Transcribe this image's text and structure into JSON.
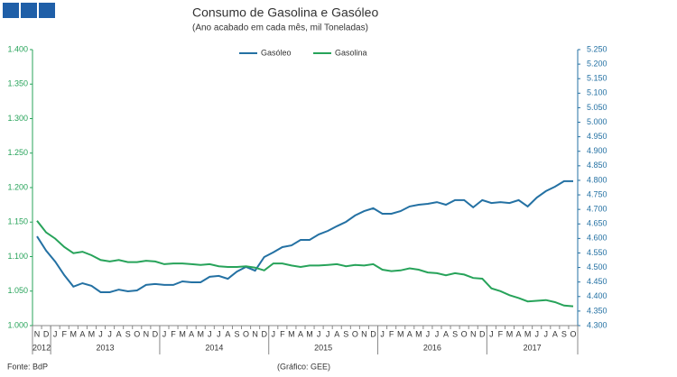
{
  "chart_data": {
    "type": "line",
    "title": "Consumo de Gasolina e Gasóleo",
    "subtitle": "(Ano acabado em cada mês, mil Toneladas)",
    "categories": [
      "N",
      "D",
      "J",
      "F",
      "M",
      "A",
      "M",
      "J",
      "J",
      "A",
      "S",
      "O",
      "N",
      "D",
      "J",
      "F",
      "M",
      "A",
      "M",
      "J",
      "J",
      "A",
      "S",
      "O",
      "N",
      "D",
      "J",
      "F",
      "M",
      "A",
      "M",
      "J",
      "J",
      "A",
      "S",
      "O",
      "N",
      "D",
      "J",
      "F",
      "M",
      "A",
      "M",
      "J",
      "J",
      "A",
      "S",
      "O",
      "N",
      "D",
      "J",
      "F",
      "M",
      "A",
      "M",
      "J",
      "J",
      "A",
      "S",
      "O"
    ],
    "years": [
      "2012",
      "2013",
      "2014",
      "2015",
      "2016",
      "2017"
    ],
    "series": [
      {
        "name": "Gasóleo",
        "color": "#2471a3",
        "axis": "y2",
        "values": [
          4607,
          4558,
          4520,
          4474,
          4434,
          4446,
          4437,
          4415,
          4415,
          4424,
          4418,
          4421,
          4440,
          4443,
          4440,
          4440,
          4452,
          4449,
          4449,
          4468,
          4471,
          4461,
          4486,
          4502,
          4489,
          4536,
          4552,
          4570,
          4576,
          4595,
          4595,
          4614,
          4626,
          4642,
          4657,
          4679,
          4694,
          4704,
          4685,
          4685,
          4694,
          4710,
          4716,
          4719,
          4725,
          4716,
          4732,
          4732,
          4707,
          4732,
          4722,
          4725,
          4722,
          4732,
          4710,
          4741,
          4763,
          4778,
          4797,
          4797
        ]
      },
      {
        "name": "Gasolina",
        "color": "#27a35a",
        "values": [
          1152,
          1135,
          1126,
          1114,
          1105,
          1107,
          1102,
          1095,
          1093,
          1095,
          1092,
          1092,
          1094,
          1093,
          1089,
          1090,
          1090,
          1089,
          1088,
          1089,
          1086,
          1085,
          1085,
          1086,
          1084,
          1080,
          1090,
          1090,
          1087,
          1085,
          1087,
          1087,
          1088,
          1089,
          1086,
          1088,
          1087,
          1089,
          1081,
          1079,
          1080,
          1083,
          1081,
          1077,
          1076,
          1073,
          1076,
          1074,
          1069,
          1068,
          1054,
          1050,
          1044,
          1040,
          1035,
          1036,
          1037,
          1034,
          1029,
          1028
        ]
      }
    ],
    "ylim": [
      1000,
      1400
    ],
    "yticks": [
      {
        "value": 1000,
        "label": "1.000"
      },
      {
        "value": 1050,
        "label": "1.050"
      },
      {
        "value": 1100,
        "label": "1.100"
      },
      {
        "value": 1150,
        "label": "1.150"
      },
      {
        "value": 1200,
        "label": "1.200"
      },
      {
        "value": 1250,
        "label": "1.250"
      },
      {
        "value": 1300,
        "label": "1.300"
      },
      {
        "value": 1350,
        "label": "1.350"
      },
      {
        "value": 1400,
        "label": "1.400"
      }
    ],
    "y2lim": [
      4300,
      5250
    ],
    "y2ticks": [
      {
        "value": 4300,
        "label": "4.300"
      },
      {
        "value": 4350,
        "label": "4.350"
      },
      {
        "value": 4400,
        "label": "4.400"
      },
      {
        "value": 4450,
        "label": "4.450"
      },
      {
        "value": 4500,
        "label": "4.500"
      },
      {
        "value": 4550,
        "label": "4.550"
      },
      {
        "value": 4600,
        "label": "4.600"
      },
      {
        "value": 4650,
        "label": "4.650"
      },
      {
        "value": 4700,
        "label": "4.700"
      },
      {
        "value": 4750,
        "label": "4.750"
      },
      {
        "value": 4800,
        "label": "4.800"
      },
      {
        "value": 4850,
        "label": "4.850"
      },
      {
        "value": 4900,
        "label": "4.900"
      },
      {
        "value": 4950,
        "label": "4.950"
      },
      {
        "value": 5000,
        "label": "5.000"
      },
      {
        "value": 5050,
        "label": "5.050"
      },
      {
        "value": 5100,
        "label": "5.100"
      },
      {
        "value": 5150,
        "label": "5.150"
      },
      {
        "value": 5200,
        "label": "5.200"
      },
      {
        "value": 5250,
        "label": "5.250"
      }
    ],
    "source": "Fonte: BdP",
    "credit": "(Gráfico: GEE)"
  }
}
